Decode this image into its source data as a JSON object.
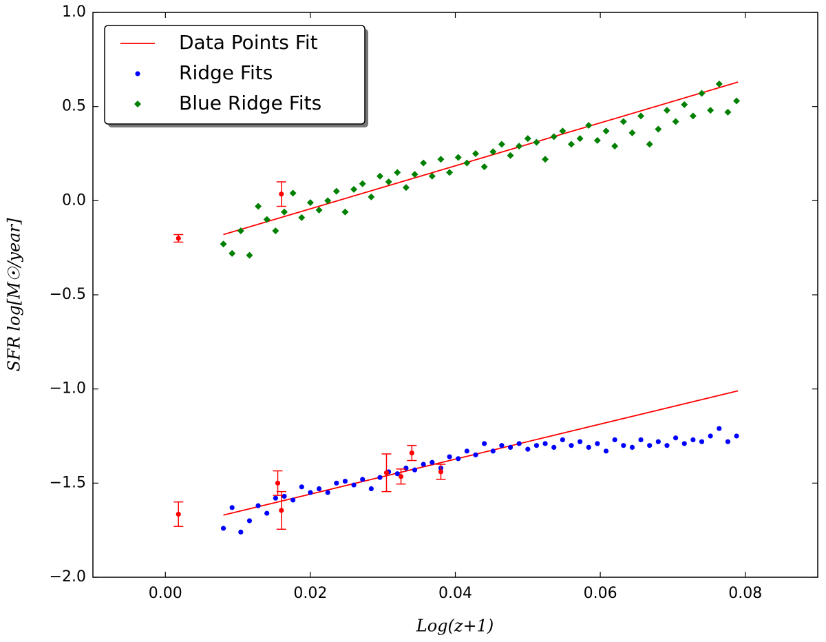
{
  "chart_data": {
    "type": "scatter",
    "x_label": "Log(z+1)",
    "y_label": "SFR log[M☉/year]",
    "xlim": [
      -0.01,
      0.09
    ],
    "ylim": [
      -2,
      1
    ],
    "xticks": [
      {
        "value": 0,
        "label": "0.00"
      },
      0.02,
      0.04,
      0.06,
      0.08
    ],
    "yticks": [
      {
        "value": -2,
        "label": "−2.0"
      },
      {
        "value": -1.5,
        "label": "−1.5"
      },
      {
        "value": -1,
        "label": "−1.0"
      },
      {
        "value": -0.5,
        "label": "−0.5"
      },
      {
        "value": 0,
        "label": "0.0"
      },
      0.5,
      {
        "value": 1,
        "label": "1.0"
      }
    ],
    "grid": false,
    "legend": "upper left",
    "series": [
      {
        "name": "Data Points Fit",
        "type": "line",
        "color": "#ff0000",
        "x": [
          0.008,
          0.079,
          null,
          0.008,
          0.079
        ],
        "values": [
          -0.18,
          0.63,
          null,
          -1.67,
          -1.01
        ]
      },
      {
        "name": "Ridge Fits",
        "type": "scatter",
        "marker": "circle",
        "color": "#0000ff",
        "x": [
          0.008,
          0.0092,
          0.0104,
          0.0116,
          0.0128,
          0.014,
          0.0152,
          0.0164,
          0.0176,
          0.0188,
          0.02,
          0.0212,
          0.0224,
          0.0236,
          0.0248,
          0.026,
          0.0272,
          0.0284,
          0.0296,
          0.0308,
          0.032,
          0.0332,
          0.0344,
          0.0356,
          0.0368,
          0.038,
          0.0392,
          0.0404,
          0.0416,
          0.0428,
          0.044,
          0.0452,
          0.0464,
          0.0476,
          0.0488,
          0.05,
          0.0512,
          0.0524,
          0.0536,
          0.0548,
          0.056,
          0.0572,
          0.0584,
          0.0596,
          0.0608,
          0.062,
          0.0632,
          0.0644,
          0.0656,
          0.0668,
          0.068,
          0.0692,
          0.0704,
          0.0716,
          0.0728,
          0.074,
          0.0752,
          0.0764,
          0.0776,
          0.0788
        ],
        "values": [
          -1.74,
          -1.63,
          -1.76,
          -1.7,
          -1.62,
          -1.66,
          -1.58,
          -1.57,
          -1.59,
          -1.52,
          -1.55,
          -1.53,
          -1.55,
          -1.5,
          -1.49,
          -1.51,
          -1.48,
          -1.53,
          -1.47,
          -1.44,
          -1.45,
          -1.42,
          -1.43,
          -1.4,
          -1.39,
          -1.42,
          -1.36,
          -1.37,
          -1.33,
          -1.35,
          -1.29,
          -1.33,
          -1.3,
          -1.31,
          -1.29,
          -1.32,
          -1.3,
          -1.29,
          -1.31,
          -1.27,
          -1.3,
          -1.28,
          -1.31,
          -1.29,
          -1.33,
          -1.27,
          -1.3,
          -1.31,
          -1.27,
          -1.3,
          -1.28,
          -1.3,
          -1.26,
          -1.29,
          -1.27,
          -1.28,
          -1.25,
          -1.21,
          -1.28,
          -1.25
        ]
      },
      {
        "name": "Blue Ridge Fits",
        "type": "scatter",
        "marker": "diamond",
        "color": "#008000",
        "x": [
          0.008,
          0.0092,
          0.0104,
          0.0116,
          0.0128,
          0.014,
          0.0152,
          0.0164,
          0.0176,
          0.0188,
          0.02,
          0.0212,
          0.0224,
          0.0236,
          0.0248,
          0.026,
          0.0272,
          0.0284,
          0.0296,
          0.0308,
          0.032,
          0.0332,
          0.0344,
          0.0356,
          0.0368,
          0.038,
          0.0392,
          0.0404,
          0.0416,
          0.0428,
          0.044,
          0.0452,
          0.0464,
          0.0476,
          0.0488,
          0.05,
          0.0512,
          0.0524,
          0.0536,
          0.0548,
          0.056,
          0.0572,
          0.0584,
          0.0596,
          0.0608,
          0.062,
          0.0632,
          0.0644,
          0.0656,
          0.0668,
          0.068,
          0.0692,
          0.0704,
          0.0716,
          0.0728,
          0.074,
          0.0752,
          0.0764,
          0.0776,
          0.0788
        ],
        "values": [
          -0.23,
          -0.28,
          -0.16,
          -0.29,
          -0.03,
          -0.1,
          -0.16,
          -0.06,
          0.04,
          -0.09,
          -0.01,
          -0.05,
          0.0,
          0.05,
          -0.06,
          0.06,
          0.09,
          0.02,
          0.13,
          0.1,
          0.15,
          0.07,
          0.14,
          0.2,
          0.13,
          0.22,
          0.15,
          0.23,
          0.2,
          0.25,
          0.18,
          0.26,
          0.3,
          0.24,
          0.29,
          0.33,
          0.31,
          0.22,
          0.34,
          0.37,
          0.3,
          0.33,
          0.4,
          0.32,
          0.37,
          0.29,
          0.42,
          0.36,
          0.45,
          0.3,
          0.38,
          0.48,
          0.42,
          0.51,
          0.45,
          0.57,
          0.48,
          0.62,
          0.47,
          0.53
        ]
      }
    ],
    "error_points": {
      "color": "#ff0000",
      "x": [
        0.0018,
        0.0018,
        0.0155,
        0.016,
        0.016,
        0.0305,
        0.0325,
        0.034,
        0.038
      ],
      "values": [
        -0.2,
        -1.665,
        -1.5,
        -1.645,
        0.035,
        -1.445,
        -1.465,
        -1.34,
        -1.44
      ],
      "errors": [
        0.02,
        0.065,
        0.065,
        0.1,
        0.065,
        0.1,
        0.04,
        0.04,
        0.04
      ]
    }
  }
}
